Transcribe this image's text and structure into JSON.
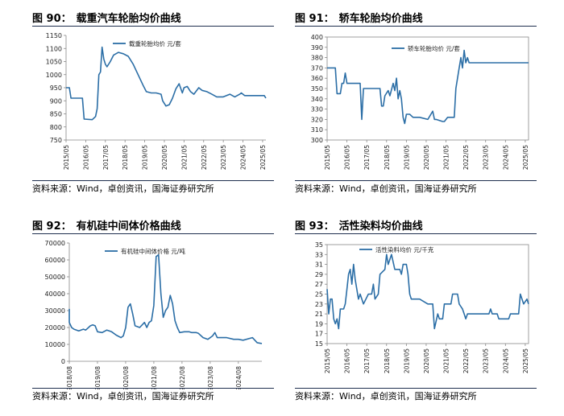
{
  "panels": [
    {
      "label": "图 90：",
      "title": "载重汽车轮胎均价曲线",
      "source": "资料来源：Wind，卓创资讯，国海证券研究所",
      "chart_data": {
        "type": "line",
        "legend": "载重轮胎均价 元/套",
        "legend_position": "top-center",
        "ylim": [
          750,
          1150
        ],
        "yticks": [
          750,
          800,
          850,
          900,
          950,
          1000,
          1050,
          1100,
          1150
        ],
        "xlim": [
          "2015-05",
          "2025-07"
        ],
        "xticks": [
          "2015/05",
          "2016/05",
          "2017/05",
          "2018/05",
          "2019/05",
          "2020/05",
          "2021/05",
          "2022/05",
          "2023/05",
          "2024/05",
          "2025/05"
        ],
        "color": "#2b6ea6",
        "points": [
          [
            "2015-05",
            950
          ],
          [
            "2015-07",
            950
          ],
          [
            "2015-08",
            910
          ],
          [
            "2016-03",
            910
          ],
          [
            "2016-04",
            830
          ],
          [
            "2016-09",
            828
          ],
          [
            "2016-11",
            840
          ],
          [
            "2016-12",
            870
          ],
          [
            "2017-01",
            1000
          ],
          [
            "2017-02",
            1010
          ],
          [
            "2017-03",
            1105
          ],
          [
            "2017-04",
            1060
          ],
          [
            "2017-05",
            1040
          ],
          [
            "2017-06",
            1030
          ],
          [
            "2017-08",
            1050
          ],
          [
            "2017-10",
            1075
          ],
          [
            "2018-01",
            1085
          ],
          [
            "2018-04",
            1080
          ],
          [
            "2018-07",
            1070
          ],
          [
            "2018-10",
            1040
          ],
          [
            "2019-01",
            1000
          ],
          [
            "2019-04",
            960
          ],
          [
            "2019-06",
            935
          ],
          [
            "2019-09",
            930
          ],
          [
            "2019-12",
            930
          ],
          [
            "2020-03",
            925
          ],
          [
            "2020-04",
            900
          ],
          [
            "2020-06",
            880
          ],
          [
            "2020-08",
            885
          ],
          [
            "2020-10",
            910
          ],
          [
            "2020-12",
            945
          ],
          [
            "2021-02",
            965
          ],
          [
            "2021-04",
            930
          ],
          [
            "2021-05",
            950
          ],
          [
            "2021-07",
            955
          ],
          [
            "2021-09",
            935
          ],
          [
            "2021-11",
            925
          ],
          [
            "2022-02",
            950
          ],
          [
            "2022-04",
            940
          ],
          [
            "2022-07",
            935
          ],
          [
            "2022-10",
            925
          ],
          [
            "2023-01",
            915
          ],
          [
            "2023-05",
            915
          ],
          [
            "2023-09",
            925
          ],
          [
            "2023-12",
            915
          ],
          [
            "2024-03",
            925
          ],
          [
            "2024-04",
            930
          ],
          [
            "2024-06",
            920
          ],
          [
            "2024-09",
            920
          ],
          [
            "2025-01",
            920
          ],
          [
            "2025-04",
            920
          ],
          [
            "2025-06",
            920
          ],
          [
            "2025-07",
            910
          ]
        ]
      }
    },
    {
      "label": "图 91：",
      "title": "轿车轮胎均价曲线",
      "source": "资料来源：Wind，卓创资讯，国海证券研究所",
      "chart_data": {
        "type": "line",
        "legend": "轿车轮胎均价 元/套",
        "legend_position": "top-left",
        "ylim": [
          300,
          400
        ],
        "yticks": [
          300,
          310,
          320,
          330,
          340,
          350,
          360,
          370,
          380,
          390,
          400
        ],
        "xlim": [
          "2015-05",
          "2025-07"
        ],
        "xticks": [
          "2015/05",
          "2016/05",
          "2017/05",
          "2018/05",
          "2019/05",
          "2020/05",
          "2021/05",
          "2022/05",
          "2023/05",
          "2024/05",
          "2025/05"
        ],
        "color": "#2b6ea6",
        "points": [
          [
            "2015-05",
            370
          ],
          [
            "2015-10",
            370
          ],
          [
            "2015-11",
            345
          ],
          [
            "2016-01",
            345
          ],
          [
            "2016-02",
            355
          ],
          [
            "2016-03",
            355
          ],
          [
            "2016-04",
            365
          ],
          [
            "2016-05",
            355
          ],
          [
            "2016-06",
            355
          ],
          [
            "2017-01",
            355
          ],
          [
            "2017-02",
            320
          ],
          [
            "2017-03",
            350
          ],
          [
            "2017-05",
            350
          ],
          [
            "2018-01",
            350
          ],
          [
            "2018-02",
            333
          ],
          [
            "2018-03",
            333
          ],
          [
            "2018-04",
            343
          ],
          [
            "2018-06",
            348
          ],
          [
            "2018-07",
            343
          ],
          [
            "2018-09",
            355
          ],
          [
            "2018-10",
            348
          ],
          [
            "2018-11",
            360
          ],
          [
            "2018-12",
            340
          ],
          [
            "2019-01",
            348
          ],
          [
            "2019-02",
            340
          ],
          [
            "2019-03",
            322
          ],
          [
            "2019-04",
            316
          ],
          [
            "2019-05",
            325
          ],
          [
            "2019-07",
            325
          ],
          [
            "2019-09",
            322
          ],
          [
            "2020-01",
            322
          ],
          [
            "2020-06",
            320
          ],
          [
            "2020-09",
            328
          ],
          [
            "2020-10",
            320
          ],
          [
            "2020-11",
            320
          ],
          [
            "2021-03",
            318
          ],
          [
            "2021-04",
            318
          ],
          [
            "2021-06",
            322
          ],
          [
            "2021-10",
            322
          ],
          [
            "2021-11",
            350
          ],
          [
            "2022-01",
            370
          ],
          [
            "2022-02",
            380
          ],
          [
            "2022-03",
            370
          ],
          [
            "2022-04",
            387
          ],
          [
            "2022-05",
            375
          ],
          [
            "2022-06",
            380
          ],
          [
            "2022-07",
            375
          ],
          [
            "2022-09",
            375
          ],
          [
            "2023-05",
            375
          ],
          [
            "2024-05",
            375
          ],
          [
            "2025-07",
            375
          ]
        ]
      }
    },
    {
      "label": "图 92：",
      "title": "有机硅中间体价格曲线",
      "source": "资料来源：Wind，卓创资讯，国海证券研究所",
      "chart_data": {
        "type": "line",
        "legend": "有机硅中间体价格 元/吨",
        "legend_position": "top-center",
        "ylim": [
          0,
          70000
        ],
        "yticks": [
          0,
          10000,
          20000,
          30000,
          40000,
          50000,
          60000,
          70000
        ],
        "xlim": [
          "2018-08",
          "2025-06"
        ],
        "xticks": [
          "2018/08",
          "2019/08",
          "2020/08",
          "2021/08",
          "2022/08",
          "2023/08",
          "2024/08"
        ],
        "color": "#2b6ea6",
        "points": [
          [
            "2018-08",
            31000
          ],
          [
            "2018-08",
            23000
          ],
          [
            "2018-09",
            20000
          ],
          [
            "2018-10",
            19000
          ],
          [
            "2018-12",
            18000
          ],
          [
            "2019-02",
            19000
          ],
          [
            "2019-03",
            18500
          ],
          [
            "2019-05",
            21000
          ],
          [
            "2019-06",
            21500
          ],
          [
            "2019-07",
            21000
          ],
          [
            "2019-08",
            17500
          ],
          [
            "2019-10",
            17000
          ],
          [
            "2019-12",
            18500
          ],
          [
            "2020-02",
            17500
          ],
          [
            "2020-04",
            15500
          ],
          [
            "2020-06",
            14000
          ],
          [
            "2020-07",
            15000
          ],
          [
            "2020-08",
            20000
          ],
          [
            "2020-09",
            32000
          ],
          [
            "2020-10",
            34000
          ],
          [
            "2020-11",
            28000
          ],
          [
            "2020-12",
            21000
          ],
          [
            "2021-02",
            20000
          ],
          [
            "2021-04",
            23000
          ],
          [
            "2021-05",
            20000
          ],
          [
            "2021-06",
            23000
          ],
          [
            "2021-07",
            24000
          ],
          [
            "2021-08",
            33000
          ],
          [
            "2021-09",
            62000
          ],
          [
            "2021-10",
            63000
          ],
          [
            "2021-11",
            40000
          ],
          [
            "2021-12",
            26000
          ],
          [
            "2022-01",
            30000
          ],
          [
            "2022-02",
            32000
          ],
          [
            "2022-03",
            39000
          ],
          [
            "2022-04",
            34000
          ],
          [
            "2022-05",
            24000
          ],
          [
            "2022-06",
            20000
          ],
          [
            "2022-07",
            17000
          ],
          [
            "2022-09",
            17500
          ],
          [
            "2022-11",
            17500
          ],
          [
            "2022-12",
            17000
          ],
          [
            "2023-02",
            17000
          ],
          [
            "2023-03",
            16500
          ],
          [
            "2023-05",
            14000
          ],
          [
            "2023-07",
            13000
          ],
          [
            "2023-09",
            15000
          ],
          [
            "2023-10",
            17000
          ],
          [
            "2023-11",
            14000
          ],
          [
            "2024-01",
            14000
          ],
          [
            "2024-03",
            14000
          ],
          [
            "2024-06",
            13000
          ],
          [
            "2024-08",
            13000
          ],
          [
            "2024-10",
            12500
          ],
          [
            "2025-02",
            14000
          ],
          [
            "2025-04",
            11000
          ],
          [
            "2025-06",
            10500
          ]
        ]
      }
    },
    {
      "label": "图 93：",
      "title": "活性染料均价曲线",
      "source": "资料来源：Wind，卓创资讯，国海证券研究所",
      "chart_data": {
        "type": "line",
        "legend": "活性染料均价 元/千克",
        "legend_position": "top-left",
        "ylim": [
          15,
          35
        ],
        "yticks": [
          15,
          17,
          19,
          21,
          23,
          25,
          27,
          29,
          31,
          33,
          35
        ],
        "xlim": [
          "2015-05",
          "2025-07"
        ],
        "xticks": [
          "2015/05",
          "2016/05",
          "2017/05",
          "2018/05",
          "2019/05",
          "2020/05",
          "2021/05",
          "2022/05",
          "2023/05",
          "2024/05",
          "2025/05"
        ],
        "color": "#2b6ea6",
        "points": [
          [
            "2015-05",
            26
          ],
          [
            "2015-06",
            21
          ],
          [
            "2015-07",
            24
          ],
          [
            "2015-08",
            24
          ],
          [
            "2015-09",
            20
          ],
          [
            "2015-10",
            19
          ],
          [
            "2015-11",
            20
          ],
          [
            "2015-12",
            18
          ],
          [
            "2016-01",
            22
          ],
          [
            "2016-03",
            22
          ],
          [
            "2016-04",
            23
          ],
          [
            "2016-05",
            26
          ],
          [
            "2016-06",
            29
          ],
          [
            "2016-07",
            30
          ],
          [
            "2016-08",
            27
          ],
          [
            "2016-09",
            31
          ],
          [
            "2016-10",
            28
          ],
          [
            "2016-12",
            24
          ],
          [
            "2017-01",
            25
          ],
          [
            "2017-03",
            23
          ],
          [
            "2017-06",
            25
          ],
          [
            "2017-08",
            25
          ],
          [
            "2017-09",
            27
          ],
          [
            "2017-10",
            24
          ],
          [
            "2017-12",
            25
          ],
          [
            "2018-01",
            29
          ],
          [
            "2018-04",
            30
          ],
          [
            "2018-05",
            33
          ],
          [
            "2018-06",
            31
          ],
          [
            "2018-08",
            33
          ],
          [
            "2018-10",
            30
          ],
          [
            "2019-01",
            30
          ],
          [
            "2019-02",
            29
          ],
          [
            "2019-03",
            31
          ],
          [
            "2019-05",
            31
          ],
          [
            "2019-06",
            29
          ],
          [
            "2019-07",
            25
          ],
          [
            "2019-08",
            24
          ],
          [
            "2019-10",
            24
          ],
          [
            "2020-01",
            24
          ],
          [
            "2020-06",
            23
          ],
          [
            "2020-09",
            23
          ],
          [
            "2020-10",
            18
          ],
          [
            "2020-12",
            21
          ],
          [
            "2021-01",
            20
          ],
          [
            "2021-03",
            20
          ],
          [
            "2021-04",
            23
          ],
          [
            "2021-08",
            23
          ],
          [
            "2021-09",
            25
          ],
          [
            "2021-12",
            25
          ],
          [
            "2022-01",
            23
          ],
          [
            "2022-03",
            22
          ],
          [
            "2022-04",
            21
          ],
          [
            "2022-05",
            20
          ],
          [
            "2022-06",
            21
          ],
          [
            "2022-12",
            21
          ],
          [
            "2023-01",
            21
          ],
          [
            "2023-07",
            21
          ],
          [
            "2023-08",
            22
          ],
          [
            "2023-09",
            21
          ],
          [
            "2023-12",
            21
          ],
          [
            "2024-01",
            20
          ],
          [
            "2024-07",
            20
          ],
          [
            "2024-08",
            21
          ],
          [
            "2025-01",
            21
          ],
          [
            "2025-02",
            25
          ],
          [
            "2025-04",
            23
          ],
          [
            "2025-06",
            24
          ],
          [
            "2025-07",
            23
          ]
        ]
      }
    }
  ]
}
